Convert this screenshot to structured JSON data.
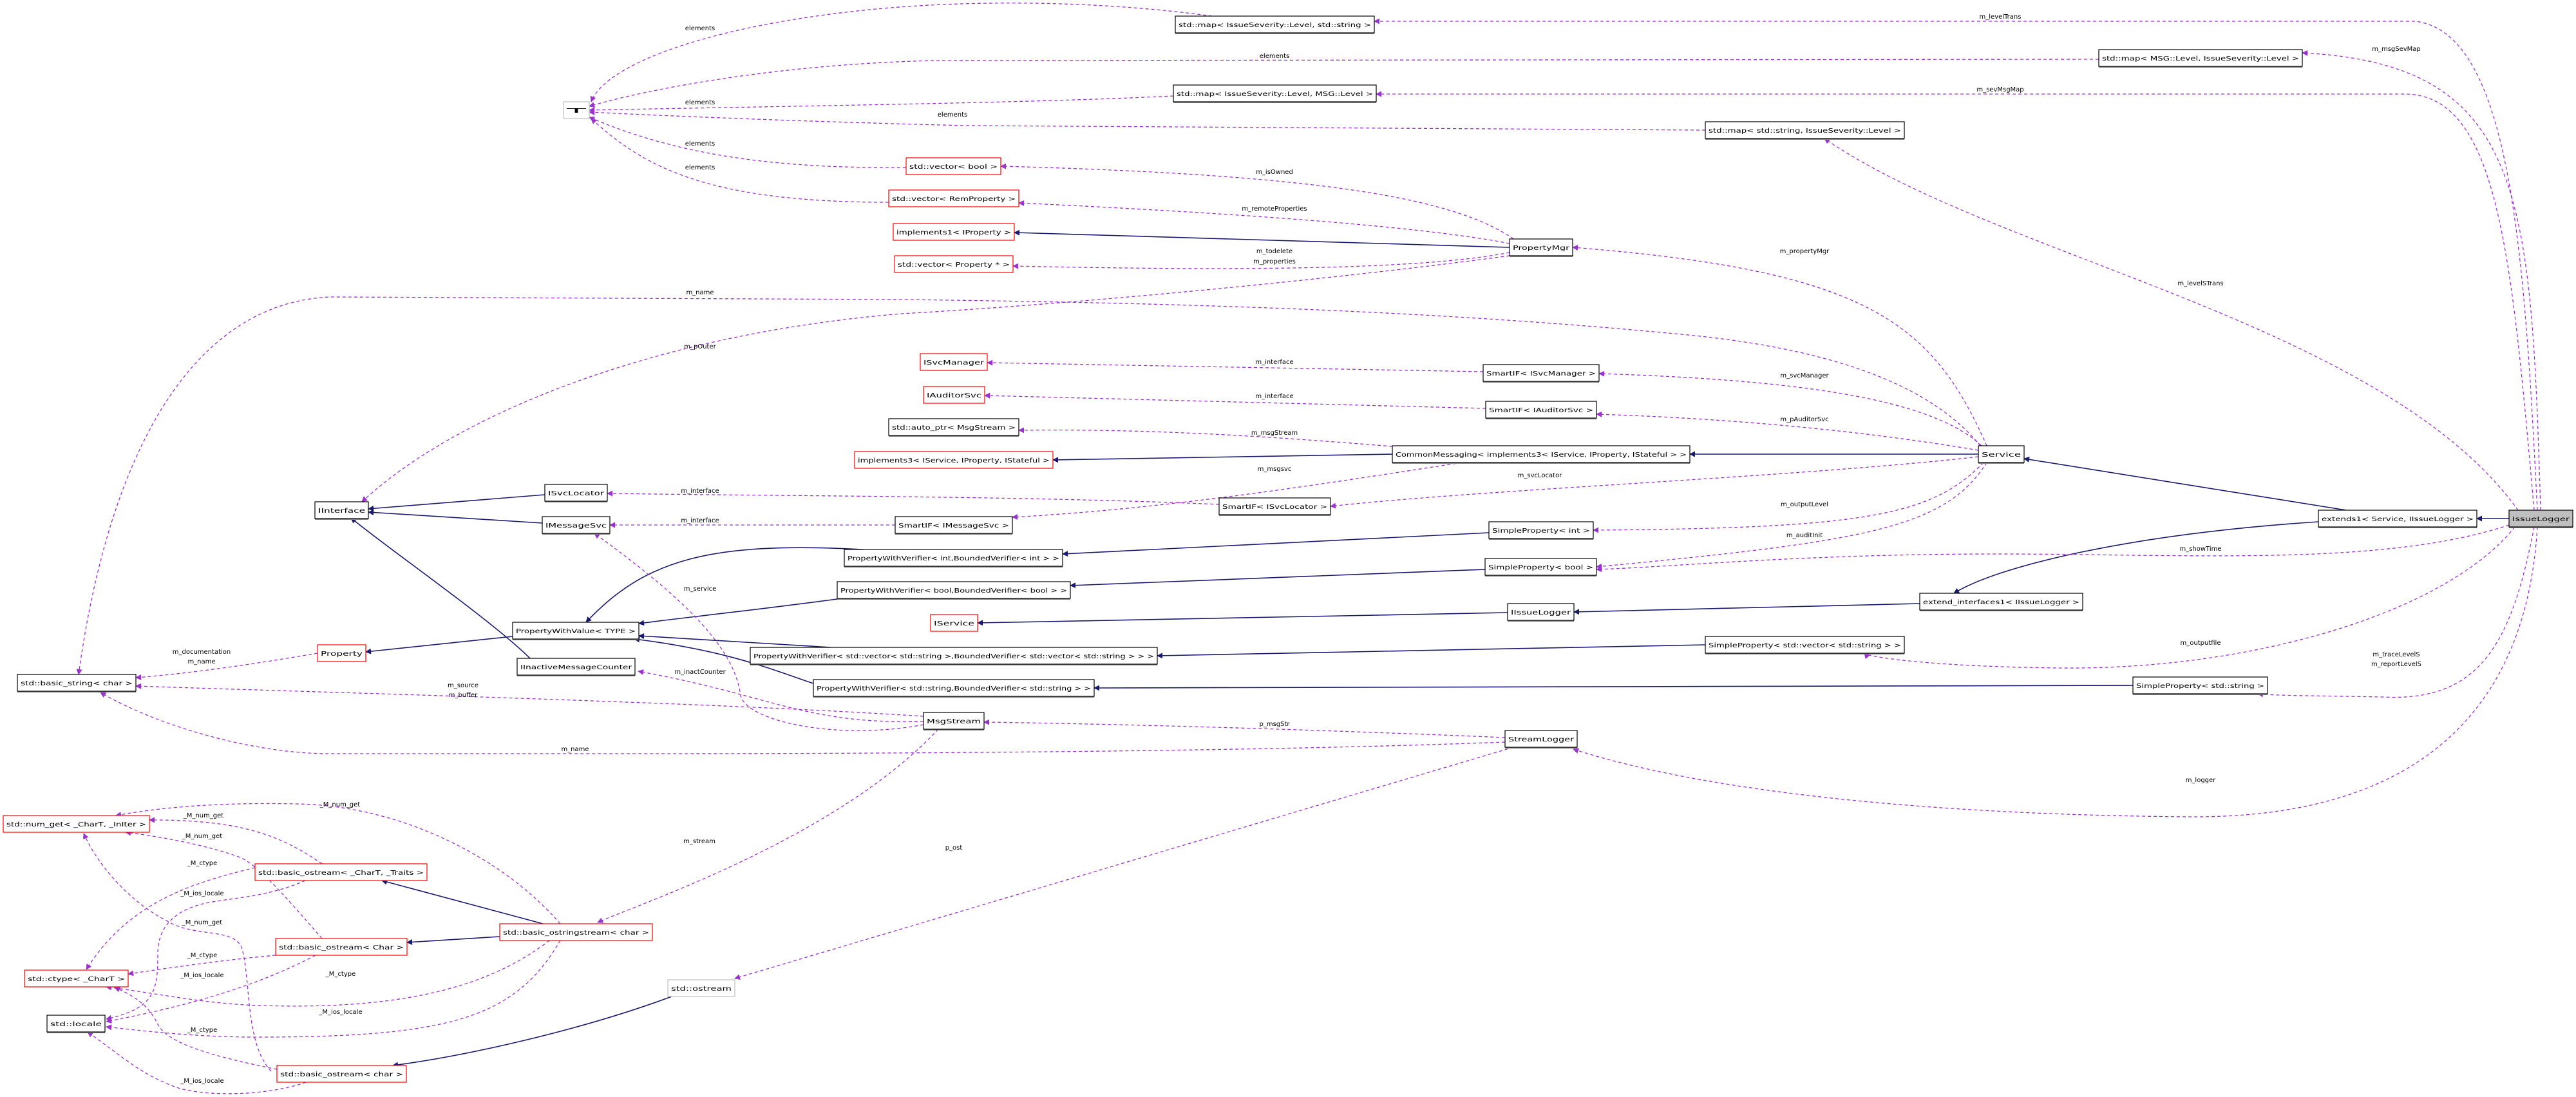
{
  "colors": {
    "inheritance_edge": "#191970",
    "usage_edge": "#9a32cd",
    "documented_border": "#000000",
    "undocumented_border": "#ff0000",
    "external_border": "#bfbfbf",
    "current_fill": "#bfbfbf"
  },
  "nodes": [
    {
      "label": "T",
      "kind": "external"
    },
    {
      "label": "std::map< IssueSeverity::Level, std::string >",
      "kind": "documented"
    },
    {
      "label": "std::map< MSG::Level, IssueSeverity::Level >",
      "kind": "documented"
    },
    {
      "label": "std::map< IssueSeverity::Level, MSG::Level >",
      "kind": "documented"
    },
    {
      "label": "std::map< std::string, IssueSeverity::Level >",
      "kind": "documented"
    },
    {
      "label": "std::vector< bool >",
      "kind": "undocumented"
    },
    {
      "label": "std::vector< RemProperty >",
      "kind": "undocumented"
    },
    {
      "label": "implements1< IProperty >",
      "kind": "undocumented"
    },
    {
      "label": "std::vector< Property * >",
      "kind": "undocumented"
    },
    {
      "label": "PropertyMgr",
      "kind": "documented"
    },
    {
      "label": "ISvcManager",
      "kind": "undocumented"
    },
    {
      "label": "IAuditorSvc",
      "kind": "undocumented"
    },
    {
      "label": "std::auto_ptr< MsgStream >",
      "kind": "documented"
    },
    {
      "label": "implements3< IService, IProperty, IStateful >",
      "kind": "undocumented"
    },
    {
      "label": "SmartIF< ISvcManager >",
      "kind": "documented"
    },
    {
      "label": "SmartIF< IAuditorSvc >",
      "kind": "documented"
    },
    {
      "label": "CommonMessaging< implements3< IService, IProperty, IStateful > >",
      "kind": "documented"
    },
    {
      "label": "SmartIF< ISvcLocator >",
      "kind": "documented"
    },
    {
      "label": "SmartIF< IMessageSvc >",
      "kind": "documented"
    },
    {
      "label": "SimpleProperty< int >",
      "kind": "documented"
    },
    {
      "label": "PropertyWithVerifier< int,BoundedVerifier< int > >",
      "kind": "documented"
    },
    {
      "label": "SimpleProperty< bool >",
      "kind": "documented"
    },
    {
      "label": "Service",
      "kind": "documented"
    },
    {
      "label": "extends1< Service, IIssueLogger >",
      "kind": "documented"
    },
    {
      "label": "IssueLogger",
      "kind": "current"
    },
    {
      "label": "IInterface",
      "kind": "documented"
    },
    {
      "label": "ISvcLocator",
      "kind": "documented"
    },
    {
      "label": "IMessageSvc",
      "kind": "documented"
    },
    {
      "label": "PropertyWithValue< TYPE >",
      "kind": "documented"
    },
    {
      "label": "Property",
      "kind": "undocumented"
    },
    {
      "label": "std::basic_string< char >",
      "kind": "documented"
    },
    {
      "label": "IInactiveMessageCounter",
      "kind": "documented"
    },
    {
      "label": "std::num_get< _CharT, _InIter >",
      "kind": "undocumented"
    },
    {
      "label": "PropertyWithVerifier< bool,BoundedVerifier< bool > >",
      "kind": "documented"
    },
    {
      "label": "IService",
      "kind": "undocumented"
    },
    {
      "label": "IIssueLogger",
      "kind": "documented"
    },
    {
      "label": "PropertyWithVerifier< std::vector< std::string >,BoundedVerifier< std::vector< std::string > > >",
      "kind": "documented"
    },
    {
      "label": "PropertyWithVerifier< std::string,BoundedVerifier< std::string > >",
      "kind": "documented"
    },
    {
      "label": "MsgStream",
      "kind": "documented"
    },
    {
      "label": "StreamLogger",
      "kind": "documented"
    },
    {
      "label": "extend_interfaces1< IIssueLogger >",
      "kind": "documented"
    },
    {
      "label": "SimpleProperty< std::vector< std::string > >",
      "kind": "documented"
    },
    {
      "label": "SimpleProperty< std::string >",
      "kind": "documented"
    },
    {
      "label": "std::basic_ostream< _CharT, _Traits >",
      "kind": "undocumented"
    },
    {
      "label": "std::basic_ostringstream< char >",
      "kind": "undocumented"
    },
    {
      "label": "std::basic_ostream< Char >",
      "kind": "undocumented"
    },
    {
      "label": "std::ctype< _CharT >",
      "kind": "undocumented"
    },
    {
      "label": "std::locale",
      "kind": "documented"
    },
    {
      "label": "std::basic_ostream< char >",
      "kind": "undocumented"
    },
    {
      "label": "std::ostream",
      "kind": "external"
    }
  ],
  "edge_labels": [
    "elements",
    "elements",
    "elements",
    "elements",
    "elements",
    "elements",
    "m_isOwned",
    "m_remoteProperties",
    "m_todelete",
    "m_properties",
    "m_levelTrans",
    "m_msgSevMap",
    "m_sevMsgMap",
    "m_propertyMgr",
    "m_levelSTrans",
    "m_name",
    "m_pOuter",
    "m_interface",
    "m_interface",
    "m_interface",
    "m_interface",
    "m_msgStream",
    "m_msgsvc",
    "m_svcLocator",
    "m_svcManager",
    "m_pAuditorSvc",
    "m_outputLevel",
    "m_auditInit",
    "m_showTime",
    "m_documentation",
    "m_name",
    "m_service",
    "m_inactCounter",
    "m_source",
    "m_buffer",
    "m_name",
    "p_msgStr",
    "m_outputfile",
    "m_traceLevelS",
    "m_reportLevelS",
    "m_logger",
    "_M_num_get",
    "_M_num_get",
    "_M_num_get",
    "_M_ctype",
    "_M_ios_locale",
    "_M_num_get",
    "_M_ctype",
    "_M_ios_locale",
    "_M_ctype",
    "_M_ios_locale",
    "_M_ctype",
    "_M_ios_locale",
    "m_stream",
    "p_ost"
  ]
}
